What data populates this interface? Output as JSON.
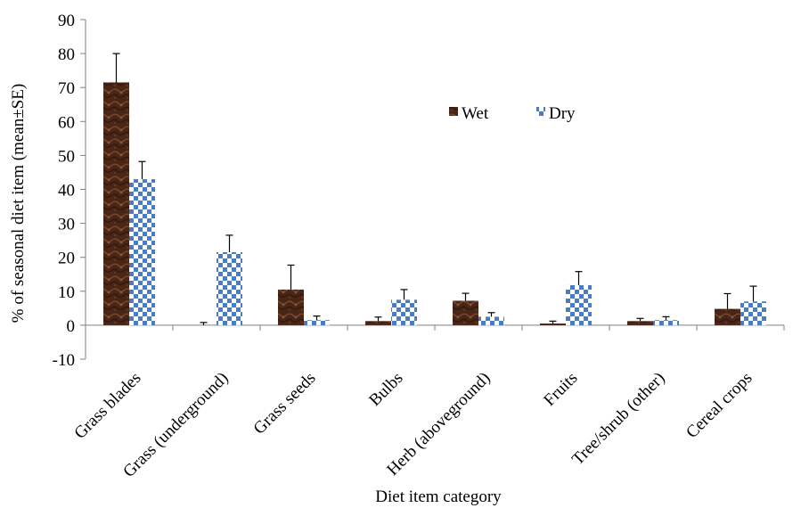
{
  "chart_data": {
    "type": "bar",
    "xlabel": "Diet item category",
    "ylabel": "% of seasonal diet item (mean±SE)",
    "ylim": [
      -10,
      90
    ],
    "yticks": [
      -10,
      0,
      10,
      20,
      30,
      40,
      50,
      60,
      70,
      80,
      90
    ],
    "categories": [
      "Grass blades",
      "Grass (underground)",
      "Grass seeds",
      "Bulbs",
      "Herb (aboveground)",
      "Fruits",
      "Tree/shrub (other)",
      "Cereal crops"
    ],
    "series": [
      {
        "name": "Wet",
        "color": "#5a3020",
        "pattern": "marble-brown",
        "values": [
          71.5,
          0,
          10.5,
          1.2,
          7.2,
          0.5,
          1.2,
          4.8
        ],
        "errors": [
          8.5,
          0.8,
          7.2,
          1.2,
          2.2,
          0.7,
          0.8,
          4.5
        ]
      },
      {
        "name": "Dry",
        "color": "#4a7cc4",
        "pattern": "checkerboard-blue",
        "values": [
          43,
          21.5,
          1.5,
          7.5,
          2.5,
          11.8,
          1.5,
          7
        ],
        "errors": [
          5.2,
          5,
          1.2,
          3,
          1.2,
          4,
          1,
          4.5
        ]
      }
    ],
    "legend_position": "top-right",
    "grid": false
  }
}
